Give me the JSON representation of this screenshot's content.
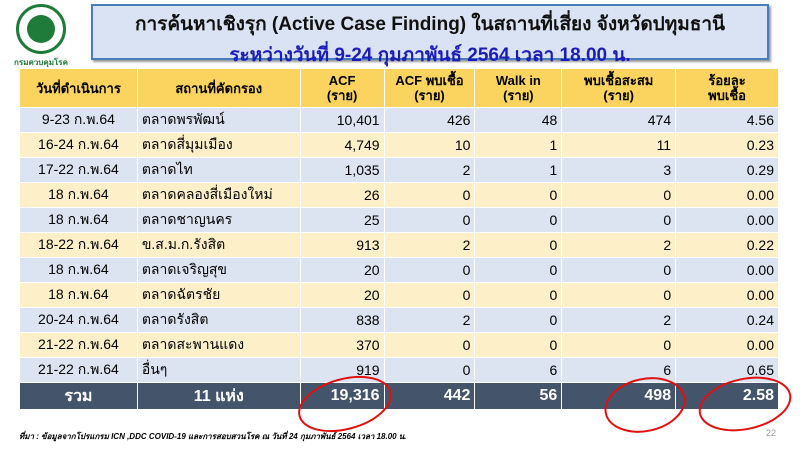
{
  "logo": {
    "text": "กรมควบคุมโรค"
  },
  "title": {
    "line1": "การค้นหาเชิงรุก (Active Case Finding) ในสถานที่เสี่ยง จังหวัดปทุมธานี",
    "line2": "ระหว่างวันที่ 9-24 กุมภาพันธ์ 2564 เวลา 18.00 น."
  },
  "table": {
    "headers": [
      [
        "วันที่ดำเนินการ",
        ""
      ],
      [
        "สถานที่คัดกรอง",
        ""
      ],
      [
        "ACF",
        "(ราย)"
      ],
      [
        "ACF พบเชื้อ",
        "(ราย)"
      ],
      [
        "Walk in",
        "(ราย)"
      ],
      [
        "พบเชื้อสะสม",
        "(ราย)"
      ],
      [
        "ร้อยละ",
        "พบเชื้อ"
      ]
    ],
    "rows": [
      [
        "9-23 ก.พ.64",
        "ตลาดพรพัฒน์",
        "10,401",
        "426",
        "48",
        "474",
        "4.56"
      ],
      [
        "16-24 ก.พ.64",
        "ตลาดสี่มุมเมือง",
        "4,749",
        "10",
        "1",
        "11",
        "0.23"
      ],
      [
        "17-22 ก.พ.64",
        "ตลาดไท",
        "1,035",
        "2",
        "1",
        "3",
        "0.29"
      ],
      [
        "18 ก.พ.64",
        "ตลาดคลองสี่เมืองใหม่",
        "26",
        "0",
        "0",
        "0",
        "0.00"
      ],
      [
        "18 ก.พ.64",
        "ตลาดชาญนคร",
        "25",
        "0",
        "0",
        "0",
        "0.00"
      ],
      [
        "18-22 ก.พ.64",
        "ข.ส.ม.ก.รังสิต",
        "913",
        "2",
        "0",
        "2",
        "0.22"
      ],
      [
        "18 ก.พ.64",
        "ตลาดเจริญสุข",
        "20",
        "0",
        "0",
        "0",
        "0.00"
      ],
      [
        "18 ก.พ.64",
        "ตลาดฉัตรชัย",
        "20",
        "0",
        "0",
        "0",
        "0.00"
      ],
      [
        "20-24 ก.พ.64",
        "ตลาดรังสิต",
        "838",
        "2",
        "0",
        "2",
        "0.24"
      ],
      [
        "21-22 ก.พ.64",
        "ตลาดสะพานแดง",
        "370",
        "0",
        "0",
        "0",
        "0.00"
      ],
      [
        "21-22 ก.พ.64",
        "อื่นๆ",
        "919",
        "0",
        "6",
        "6",
        "0.65"
      ]
    ],
    "total": [
      "รวม",
      "11 แห่ง",
      "19,316",
      "442",
      "56",
      "498",
      "2.58"
    ]
  },
  "note": "ที่มา : ข้อมูลจากโปรแกรม ICN ,DDC COVID-19 และการสอบสวนโรค ณ วันที่ 24 กุมภาพันธ์ 2564 เวลา 18.00 น.",
  "page_number": "22",
  "colors": {
    "header": "#fbd45f",
    "row_blue": "#dde4f1",
    "row_yellow": "#fdf0c8",
    "total": "#44546a",
    "annotation": "#e01010",
    "title_blue": "#1c1cb8"
  }
}
